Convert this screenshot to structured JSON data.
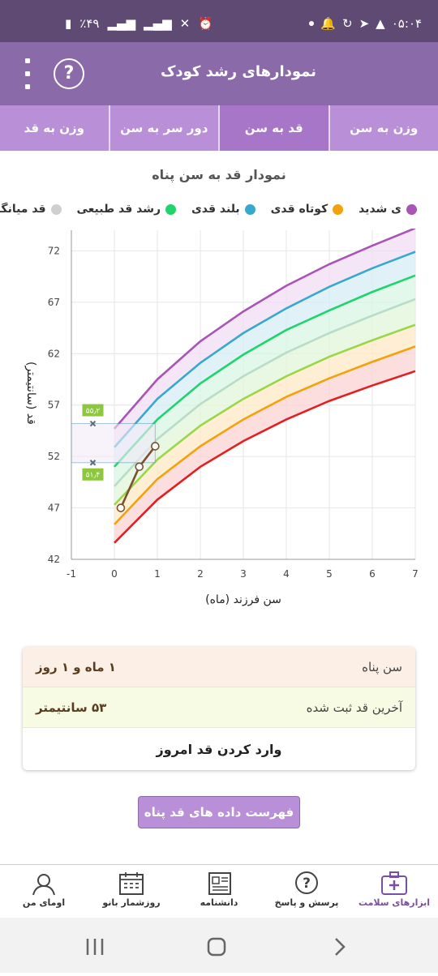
{
  "status_bar": {
    "time": "۰۵:۰۴",
    "battery": "٪۴۹"
  },
  "app_bar": {
    "title": "نمودارهای رشد کودک",
    "help_icon": "help-circle-icon",
    "menu_icon": "more-vert-icon"
  },
  "tabs": [
    {
      "label": "وزن به سن",
      "active": false
    },
    {
      "label": "قد به سن",
      "active": true
    },
    {
      "label": "دور سر به سن",
      "active": false
    },
    {
      "label": "وزن به قد",
      "active": false
    }
  ],
  "chart_title": "نمودار قد به سن  پناه",
  "legend": [
    {
      "label": "ی شدید",
      "color": "#a855b5"
    },
    {
      "label": "کوتاه قدی",
      "color": "#f2a20c"
    },
    {
      "label": "بلند قدی",
      "color": "#38a9cc"
    },
    {
      "label": "رشد قد طبیعی",
      "color": "#1fd46c"
    },
    {
      "label": "قد میانگین",
      "color": "#cfcfcf"
    }
  ],
  "chart_data": {
    "type": "line",
    "xlabel": "سن فرزند (ماه)",
    "ylabel": "قد (سانتیمتر)",
    "xlim": [
      -1,
      7
    ],
    "ylim": [
      42,
      74
    ],
    "x_ticks": [
      -1,
      0,
      1,
      2,
      3,
      4,
      5,
      6,
      7
    ],
    "y_ticks": [
      42,
      47,
      52,
      57,
      62,
      67,
      72
    ],
    "grid": true,
    "x": [
      0,
      1,
      2,
      3,
      4,
      5,
      6,
      7
    ],
    "series": [
      {
        "color": "#e32020",
        "values": [
          43.6,
          47.8,
          51.0,
          53.5,
          55.6,
          57.4,
          58.9,
          60.3
        ]
      },
      {
        "color": "#f2a20c",
        "values": [
          45.4,
          49.8,
          53.0,
          55.6,
          57.8,
          59.6,
          61.2,
          62.7
        ]
      },
      {
        "color": "#9bd64a",
        "values": [
          47.3,
          51.7,
          55.0,
          57.6,
          59.8,
          61.7,
          63.3,
          64.8
        ]
      },
      {
        "color": "#b8dcc8",
        "values": [
          49.1,
          53.7,
          57.1,
          59.8,
          62.1,
          64.0,
          65.7,
          67.3
        ]
      },
      {
        "color": "#1fd46c",
        "values": [
          51.0,
          55.6,
          59.1,
          61.9,
          64.3,
          66.2,
          68.0,
          69.6
        ]
      },
      {
        "color": "#38a9cc",
        "values": [
          52.9,
          57.6,
          61.1,
          64.0,
          66.4,
          68.5,
          70.3,
          71.9
        ]
      },
      {
        "color": "#a855b5",
        "values": [
          54.7,
          59.5,
          63.2,
          66.1,
          68.6,
          70.7,
          72.5,
          74.2
        ]
      }
    ],
    "child_points": {
      "color": "#7a5230",
      "x": [
        0.15,
        0.58,
        0.95
      ],
      "y": [
        47.0,
        51.0,
        53.0
      ]
    },
    "annotation": {
      "upper_label": "۵۵٫۲",
      "lower_label": "۵۱٫۴",
      "upper": 55.2,
      "lower": 51.4,
      "x_from": -1,
      "x_to": 0.95
    }
  },
  "info": {
    "age_label": "سن  پناه",
    "age_value": "۱ ماه و ۱ روز",
    "height_label": "آخرین قد ثبت شده",
    "height_value": "۵۳ سانتیمتر",
    "action_label": "وارد کردن قد امروز"
  },
  "list_button": "فهرست داده های قد  پناه",
  "bottom_nav": [
    {
      "label": "ابزارهای سلامت",
      "icon": "medical-kit-icon",
      "active": true
    },
    {
      "label": "پرسش و پاسخ",
      "icon": "question-bubble-icon",
      "active": false
    },
    {
      "label": "دانشنامه",
      "icon": "newspaper-icon",
      "active": false
    },
    {
      "label": "روزشمار بانو",
      "icon": "calendar-icon",
      "active": false
    },
    {
      "label": "اومای من",
      "icon": "user-avatar-icon",
      "active": false
    }
  ]
}
